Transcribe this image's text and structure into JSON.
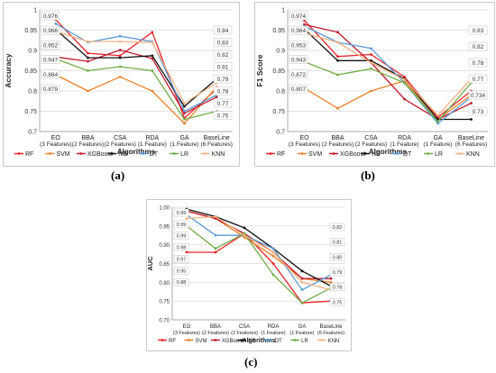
{
  "captions": {
    "a": "(a)",
    "b": "(b)",
    "c": "(c)"
  },
  "colors": {
    "RF": "#e8232a",
    "SVM": "#e8822a",
    "XGBoost": "#c0182a",
    "NB": "#111111",
    "DT": "#5b9bd5",
    "LR": "#70ad47",
    "KNN": "#f4b183"
  },
  "chart_data": [
    {
      "type": "line",
      "panel": "a",
      "ylabel": "Accuracy",
      "xlabel": "Algorithms",
      "categories": [
        [
          "EO",
          "(3 Features)"
        ],
        [
          "BBA",
          "(2 Features)"
        ],
        [
          "CSA",
          "(2 Features)"
        ],
        [
          "RDA",
          "(1 Feature)"
        ],
        [
          "GA",
          "(1 Feature)"
        ],
        [
          "BaseLine",
          "(6 Features)"
        ]
      ],
      "ylim": [
        0.7,
        1.0
      ],
      "yticks": [
        "0.7",
        "0.75",
        "0.8",
        "0.85",
        "0.9",
        "0.95",
        "1"
      ],
      "grid": true,
      "legend": "bottom",
      "series": [
        {
          "name": "RF",
          "values": [
            0.976,
            0.893,
            0.887,
            0.945,
            0.733,
            0.805
          ]
        },
        {
          "name": "SVM",
          "values": [
            0.84,
            0.8,
            0.835,
            0.8,
            0.72,
            0.81
          ]
        },
        {
          "name": "XGBoost",
          "values": [
            0.884,
            0.873,
            0.901,
            0.88,
            0.745,
            0.785
          ]
        },
        {
          "name": "NB",
          "values": [
            0.952,
            0.882,
            0.882,
            0.887,
            0.762,
            0.83
          ]
        },
        {
          "name": "DT",
          "values": [
            0.966,
            0.92,
            0.935,
            0.922,
            0.75,
            0.79
          ]
        },
        {
          "name": "LR",
          "values": [
            0.879,
            0.85,
            0.86,
            0.85,
            0.73,
            0.75
          ]
        },
        {
          "name": "KNN",
          "values": [
            0.947,
            0.922,
            0.922,
            0.92,
            0.77,
            0.82
          ]
        }
      ],
      "annotations": [
        "0.976",
        "0.966",
        "0.952",
        "0.947",
        "0.884",
        "0.879",
        "0.84",
        "0.83",
        "0.82",
        "0.81",
        "0.79",
        "0.78",
        "0.77",
        "0.75"
      ]
    },
    {
      "type": "line",
      "panel": "b",
      "ylabel": "F1 Score",
      "xlabel": "Algorithms",
      "categories": [
        [
          "EO",
          "(3 Features)"
        ],
        [
          "BBA",
          "(2 Features)"
        ],
        [
          "CSA",
          "(2 Features)"
        ],
        [
          "RDA",
          "(1 Feature)"
        ],
        [
          "GA",
          "(1 Feature)"
        ],
        [
          "BaseLine",
          "(6 Features)"
        ]
      ],
      "ylim": [
        0.7,
        1.0
      ],
      "yticks": [
        "0.7",
        "0.75",
        "0.8",
        "0.85",
        "0.9",
        "0.95",
        "1"
      ],
      "grid": true,
      "legend": "bottom",
      "series": [
        {
          "name": "RF",
          "values": [
            0.974,
            0.885,
            0.89,
            0.835,
            0.735,
            0.8
          ]
        },
        {
          "name": "SVM",
          "values": [
            0.807,
            0.757,
            0.8,
            0.825,
            0.73,
            0.79
          ]
        },
        {
          "name": "XGBoost",
          "values": [
            0.964,
            0.945,
            0.87,
            0.78,
            0.73,
            0.77
          ]
        },
        {
          "name": "NB",
          "values": [
            0.953,
            0.875,
            0.875,
            0.83,
            0.73,
            0.73
          ]
        },
        {
          "name": "DT",
          "values": [
            0.96,
            0.92,
            0.905,
            0.82,
            0.72,
            0.785
          ]
        },
        {
          "name": "LR",
          "values": [
            0.872,
            0.84,
            0.855,
            0.82,
            0.725,
            0.82
          ]
        },
        {
          "name": "KNN",
          "values": [
            0.943,
            0.92,
            0.87,
            0.828,
            0.74,
            0.83
          ]
        }
      ],
      "annotations": [
        "0.974",
        "0.964",
        "0.953",
        "0.943",
        "0.872",
        "0.807",
        "0.83",
        "0.82",
        "0.78",
        "0.77",
        "0.734",
        "0.73"
      ]
    },
    {
      "type": "line",
      "panel": "c",
      "ylabel": "AUC",
      "xlabel": "Algorithms",
      "categories": [
        [
          "EO",
          "(3 Features)"
        ],
        [
          "BBA",
          "(2 Features)"
        ],
        [
          "CSA",
          "(2 Features)"
        ],
        [
          "RDA",
          "(1 Feature)"
        ],
        [
          "GA",
          "(1 Feature)"
        ],
        [
          "BaseLine",
          "(6 Features)"
        ]
      ],
      "ylim": [
        0.7,
        1.0
      ],
      "yticks": [
        "0.70",
        "0.75",
        "0.80",
        "0.85",
        "0.90",
        "0.95",
        "1.00"
      ],
      "grid": true,
      "legend": "bottom",
      "series": [
        {
          "name": "RF",
          "values": [
            0.88,
            0.88,
            0.93,
            0.85,
            0.745,
            0.75
          ]
        },
        {
          "name": "SVM",
          "values": [
            0.99,
            0.97,
            0.92,
            0.87,
            0.81,
            0.8
          ]
        },
        {
          "name": "XGBoost",
          "values": [
            0.99,
            0.97,
            0.93,
            0.88,
            0.81,
            0.81
          ]
        },
        {
          "name": "NB",
          "values": [
            0.995,
            0.975,
            0.945,
            0.89,
            0.83,
            0.79
          ]
        },
        {
          "name": "DT",
          "values": [
            0.98,
            0.925,
            0.925,
            0.89,
            0.78,
            0.82
          ]
        },
        {
          "name": "LR",
          "values": [
            0.95,
            0.89,
            0.93,
            0.82,
            0.745,
            0.785
          ]
        },
        {
          "name": "KNN",
          "values": [
            0.97,
            0.975,
            0.925,
            0.88,
            0.8,
            0.78
          ]
        }
      ],
      "annotations": [
        "0.99",
        "0.99",
        "0.99",
        "0.98",
        "0.97",
        "0.95",
        "0.88",
        "0.82",
        "0.81",
        "0.80",
        "0.79",
        "0.78",
        "0.75"
      ]
    }
  ]
}
